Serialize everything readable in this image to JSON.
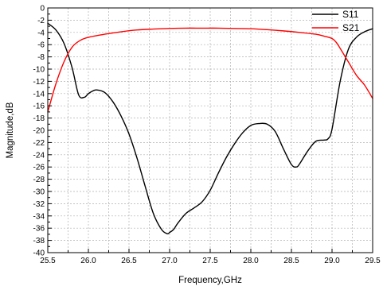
{
  "chart_data": {
    "type": "line",
    "title": "",
    "xlabel": "Frequency,GHz",
    "ylabel": "Magnitude,dB",
    "xlim": [
      25.5,
      29.5
    ],
    "ylim": [
      -40,
      0
    ],
    "x_ticks": [
      25.5,
      26.0,
      26.5,
      27.0,
      27.5,
      28.0,
      28.5,
      29.0,
      29.5
    ],
    "x_tick_labels": [
      "25.5",
      "26.0",
      "26.5",
      "27.0",
      "27.5",
      "28.0",
      "28.5",
      "29.0",
      "29.5"
    ],
    "y_ticks": [
      0,
      -2,
      -4,
      -6,
      -8,
      -10,
      -12,
      -14,
      -16,
      -18,
      -20,
      -22,
      -24,
      -26,
      -28,
      -30,
      -32,
      -34,
      -36,
      -38,
      -40
    ],
    "y_tick_labels": [
      "0",
      "-2",
      "-4",
      "-6",
      "-8",
      "-10",
      "-12",
      "-14",
      "-16",
      "-18",
      "-20",
      "-22",
      "-24",
      "-26",
      "-28",
      "-30",
      "-32",
      "-34",
      "-36",
      "-38",
      "-40"
    ],
    "grid": true,
    "legend_position": "top-right",
    "series": [
      {
        "name": "S11",
        "color": "#000000",
        "x": [
          25.5,
          25.6,
          25.7,
          25.8,
          25.88,
          25.95,
          26.0,
          26.05,
          26.1,
          26.2,
          26.3,
          26.4,
          26.5,
          26.6,
          26.7,
          26.8,
          26.9,
          26.97,
          27.0,
          27.05,
          27.1,
          27.2,
          27.3,
          27.4,
          27.5,
          27.6,
          27.7,
          27.8,
          27.9,
          28.0,
          28.1,
          28.2,
          28.3,
          28.4,
          28.5,
          28.56,
          28.6,
          28.7,
          28.8,
          28.9,
          28.95,
          29.0,
          29.1,
          29.2,
          29.3,
          29.4,
          29.5
        ],
        "y": [
          -2.5,
          -3.6,
          -5.8,
          -9.8,
          -14.2,
          -14.6,
          -14.0,
          -13.6,
          -13.4,
          -13.8,
          -15.3,
          -17.6,
          -20.6,
          -24.6,
          -29.2,
          -33.6,
          -36.2,
          -36.9,
          -36.7,
          -36.2,
          -35.2,
          -33.6,
          -32.7,
          -31.7,
          -29.8,
          -27.0,
          -24.4,
          -22.2,
          -20.4,
          -19.2,
          -18.9,
          -19.0,
          -20.2,
          -23.0,
          -25.6,
          -26.0,
          -25.5,
          -23.4,
          -21.8,
          -21.6,
          -21.4,
          -19.8,
          -12.0,
          -6.8,
          -4.8,
          -3.9,
          -3.4
        ]
      },
      {
        "name": "S21",
        "color": "#ff0000",
        "x": [
          25.5,
          25.6,
          25.7,
          25.8,
          25.9,
          26.0,
          26.2,
          26.4,
          26.6,
          26.8,
          27.0,
          27.2,
          27.4,
          27.6,
          27.8,
          28.0,
          28.2,
          28.4,
          28.6,
          28.8,
          28.9,
          29.0,
          29.05,
          29.1,
          29.2,
          29.3,
          29.4,
          29.5
        ],
        "y": [
          -17.0,
          -12.4,
          -8.8,
          -6.4,
          -5.3,
          -4.8,
          -4.3,
          -3.9,
          -3.6,
          -3.45,
          -3.35,
          -3.3,
          -3.3,
          -3.3,
          -3.35,
          -3.4,
          -3.55,
          -3.75,
          -4.0,
          -4.3,
          -4.6,
          -5.0,
          -5.6,
          -6.6,
          -8.8,
          -11.0,
          -12.6,
          -14.8
        ]
      }
    ]
  }
}
